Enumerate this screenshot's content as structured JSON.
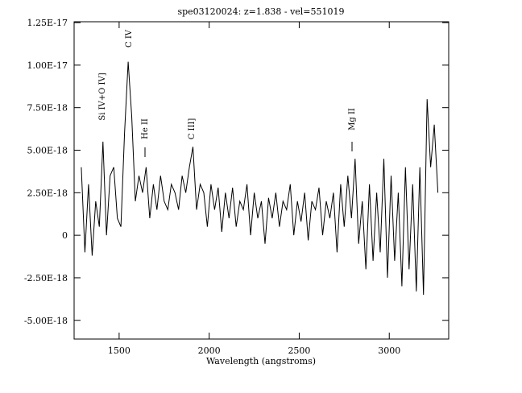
{
  "chart_data": {
    "type": "line",
    "title": "spe03120024: z=1.838 - vel=551019",
    "x_label": "Wavelength (angstroms)",
    "annotations": [
      "Si IV+O IV]",
      "C IV",
      "He II",
      "C III]",
      "Mg II"
    ],
    "color": "#000000",
    "xlim": [
      1250,
      3330
    ],
    "xticks": [
      1500,
      2000,
      2500,
      3000
    ],
    "ylim": [
      -6.1e-18,
      1.255e-17
    ],
    "yticks": [
      {
        "value": -5e-18,
        "label": "-5.00E-18"
      },
      {
        "value": -2.5e-18,
        "label": "-2.50E-18"
      },
      0,
      {
        "value": 2.5e-18,
        "label": "2.50E-18"
      },
      {
        "value": 5e-18,
        "label": "5.00E-18"
      },
      {
        "value": 7.5e-18,
        "label": "7.50E-18"
      },
      {
        "value": 1e-17,
        "label": "1.00E-17"
      },
      {
        "value": 1.25e-17,
        "label": "1.25E-17"
      }
    ],
    "x": [
      1290,
      1310,
      1330,
      1350,
      1370,
      1390,
      1410,
      1430,
      1450,
      1470,
      1490,
      1510,
      1530,
      1550,
      1570,
      1590,
      1610,
      1630,
      1650,
      1670,
      1690,
      1710,
      1730,
      1750,
      1770,
      1790,
      1810,
      1830,
      1850,
      1870,
      1890,
      1910,
      1930,
      1950,
      1970,
      1990,
      2010,
      2030,
      2050,
      2070,
      2090,
      2110,
      2130,
      2150,
      2170,
      2190,
      2210,
      2230,
      2250,
      2270,
      2290,
      2310,
      2330,
      2350,
      2370,
      2390,
      2410,
      2430,
      2450,
      2470,
      2490,
      2510,
      2530,
      2550,
      2570,
      2590,
      2610,
      2630,
      2650,
      2670,
      2690,
      2710,
      2730,
      2750,
      2770,
      2790,
      2810,
      2830,
      2850,
      2870,
      2890,
      2910,
      2930,
      2950,
      2970,
      2990,
      3010,
      3030,
      3050,
      3070,
      3090,
      3110,
      3130,
      3150,
      3170,
      3190,
      3210,
      3230,
      3250,
      3270
    ],
    "values": [
      4e-18,
      -1e-18,
      3e-18,
      -1.2e-18,
      2e-18,
      5e-19,
      5.5e-18,
      0,
      3.5e-18,
      4e-18,
      1e-18,
      5e-19,
      6e-18,
      1.02e-17,
      7e-18,
      2e-18,
      3.5e-18,
      2.5e-18,
      4e-18,
      1e-18,
      3e-18,
      1.5e-18,
      3.5e-18,
      2e-18,
      1.5e-18,
      3e-18,
      2.5e-18,
      1.5e-18,
      3.5e-18,
      2.5e-18,
      4e-18,
      5.2e-18,
      1.5e-18,
      3e-18,
      2.5e-18,
      5e-19,
      3e-18,
      1.5e-18,
      2.8e-18,
      2e-19,
      2.5e-18,
      1e-18,
      2.8e-18,
      5e-19,
      2e-18,
      1.5e-18,
      3e-18,
      0,
      2.5e-18,
      1e-18,
      2e-18,
      -5e-19,
      2.2e-18,
      1e-18,
      2.5e-18,
      5e-19,
      2e-18,
      1.5e-18,
      3e-18,
      0,
      2e-18,
      8e-19,
      2.5e-18,
      -3e-19,
      2e-18,
      1.5e-18,
      2.8e-18,
      0,
      2e-18,
      1e-18,
      2.5e-18,
      -1e-18,
      3e-18,
      5e-19,
      3.5e-18,
      1e-18,
      4.5e-18,
      -5e-19,
      2e-18,
      -2e-18,
      3e-18,
      -1.5e-18,
      2.5e-18,
      -1e-18,
      4.5e-18,
      -2.5e-18,
      3.5e-18,
      -1.5e-18,
      2.5e-18,
      -3e-18,
      4e-18,
      -2e-18,
      3e-18,
      -3.3e-18,
      4e-18,
      -3.5e-18,
      8e-18,
      4e-18,
      6.5e-18,
      2.5e-18
    ]
  }
}
